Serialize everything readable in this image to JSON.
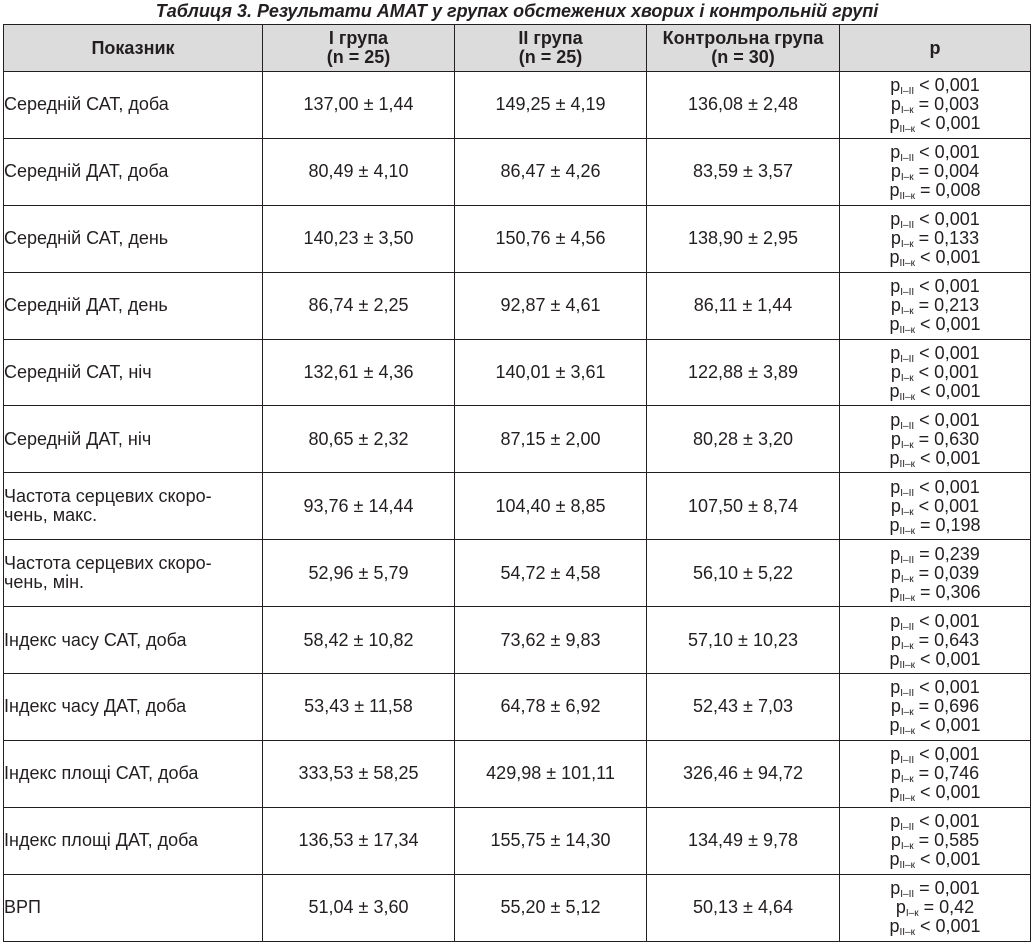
{
  "caption": "Таблиця 3.  Результати АМАТ у групах обстежених хворих і контрольній групі",
  "header": {
    "indicator": "Показник",
    "group1": {
      "name": "І група",
      "n": "(n = 25)"
    },
    "group2": {
      "name": "ІІ група",
      "n": "(n = 25)"
    },
    "control": {
      "name": "Контрольна група",
      "n": "(n = 30)"
    },
    "p": "p"
  },
  "rows": [
    {
      "indicator": "Середній САТ, доба",
      "g1": "137,00 ± 1,44",
      "g2": "149,25 ± 4,19",
      "ctrl": "136,08 ± 2,48",
      "p": [
        {
          "sym": "p",
          "sub": "І–ІІ",
          "val": " < 0,001"
        },
        {
          "sym": "p",
          "sub": "І–к",
          "val": " = 0,003"
        },
        {
          "sym": "p",
          "sub": "ІІ–к",
          "val": " < 0,001"
        }
      ]
    },
    {
      "indicator": "Середній ДАТ, доба",
      "g1": "80,49 ± 4,10",
      "g2": "86,47 ± 4,26",
      "ctrl": "83,59 ± 3,57",
      "p": [
        {
          "sym": "p",
          "sub": "І–ІІ",
          "val": " < 0,001"
        },
        {
          "sym": "p",
          "sub": "І–к",
          "val": " = 0,004"
        },
        {
          "sym": "p",
          "sub": "ІІ–к",
          "val": " = 0,008"
        }
      ]
    },
    {
      "indicator": "Середній САТ, день",
      "g1": "140,23 ± 3,50",
      "g2": "150,76 ± 4,56",
      "ctrl": "138,90 ± 2,95",
      "p": [
        {
          "sym": "p",
          "sub": "І–ІІ",
          "val": " < 0,001"
        },
        {
          "sym": "p",
          "sub": "І–к",
          "val": " = 0,133"
        },
        {
          "sym": "p",
          "sub": "ІІ–к",
          "val": " < 0,001"
        }
      ]
    },
    {
      "indicator": "Середній ДАТ, день",
      "g1": "86,74 ± 2,25",
      "g2": "92,87 ± 4,61",
      "ctrl": "86,11 ± 1,44",
      "p": [
        {
          "sym": "p",
          "sub": "І–ІІ",
          "val": " < 0,001"
        },
        {
          "sym": "p",
          "sub": "І–к",
          "val": " = 0,213"
        },
        {
          "sym": "p",
          "sub": "ІІ–к",
          "val": " < 0,001"
        }
      ]
    },
    {
      "indicator": "Середній САТ, ніч",
      "g1": "132,61 ± 4,36",
      "g2": "140,01 ± 3,61",
      "ctrl": "122,88 ± 3,89",
      "p": [
        {
          "sym": "p",
          "sub": "І–ІІ",
          "val": " < 0,001"
        },
        {
          "sym": "p",
          "sub": "І–к",
          "val": " < 0,001"
        },
        {
          "sym": "p",
          "sub": "ІІ–к",
          "val": " < 0,001"
        }
      ]
    },
    {
      "indicator": "Середній ДАТ, ніч",
      "g1": "80,65 ± 2,32",
      "g2": "87,15 ± 2,00",
      "ctrl": "80,28 ± 3,20",
      "p": [
        {
          "sym": "p",
          "sub": "І–ІІ",
          "val": " < 0,001"
        },
        {
          "sym": "p",
          "sub": "І–к",
          "val": " = 0,630"
        },
        {
          "sym": "p",
          "sub": "ІІ–к",
          "val": " < 0,001"
        }
      ]
    },
    {
      "indicator": "Частота серцевих скоро-\nчень, макс.",
      "g1": "93,76 ± 14,44",
      "g2": "104,40 ± 8,85",
      "ctrl": "107,50 ± 8,74",
      "p": [
        {
          "sym": "p",
          "sub": "І–ІІ",
          "val": " < 0,001"
        },
        {
          "sym": "p",
          "sub": "І–к",
          "val": " < 0,001"
        },
        {
          "sym": "p",
          "sub": "ІІ–к",
          "val": " = 0,198"
        }
      ]
    },
    {
      "indicator": "Частота серцевих скоро-\nчень, мін.",
      "g1": "52,96 ± 5,79",
      "g2": "54,72 ± 4,58",
      "ctrl": "56,10 ± 5,22",
      "p": [
        {
          "sym": "p",
          "sub": "І–ІІ",
          "val": " = 0,239"
        },
        {
          "sym": "p",
          "sub": "І–к",
          "val": " = 0,039"
        },
        {
          "sym": "p",
          "sub": "ІІ–к",
          "val": " = 0,306"
        }
      ]
    },
    {
      "indicator": "Індекс часу САТ, доба",
      "g1": "58,42 ± 10,82",
      "g2": "73,62 ± 9,83",
      "ctrl": "57,10 ± 10,23",
      "p": [
        {
          "sym": "p",
          "sub": "І–ІІ",
          "val": " < 0,001"
        },
        {
          "sym": "p",
          "sub": "І–к",
          "val": " = 0,643"
        },
        {
          "sym": "p",
          "sub": "ІІ–к",
          "val": " < 0,001"
        }
      ]
    },
    {
      "indicator": "Індекс часу ДАТ, доба",
      "g1": "53,43 ± 11,58",
      "g2": "64,78 ± 6,92",
      "ctrl": "52,43 ± 7,03",
      "p": [
        {
          "sym": "p",
          "sub": "І–ІІ",
          "val": " < 0,001"
        },
        {
          "sym": "p",
          "sub": "І–к",
          "val": " = 0,696"
        },
        {
          "sym": "p",
          "sub": "ІІ–к",
          "val": " < 0,001"
        }
      ]
    },
    {
      "indicator": "Індекс площі САТ, доба",
      "g1": "333,53 ± 58,25",
      "g2": "429,98 ± 101,11",
      "ctrl": "326,46 ± 94,72",
      "p": [
        {
          "sym": "p",
          "sub": "І–ІІ",
          "val": " < 0,001"
        },
        {
          "sym": "p",
          "sub": "І–к",
          "val": " = 0,746"
        },
        {
          "sym": "p",
          "sub": "ІІ–к",
          "val": " < 0,001"
        }
      ]
    },
    {
      "indicator": "Індекс площі ДАТ, доба",
      "g1": "136,53 ± 17,34",
      "g2": "155,75 ± 14,30",
      "ctrl": "134,49 ± 9,78",
      "p": [
        {
          "sym": "p",
          "sub": "І–ІІ",
          "val": " < 0,001"
        },
        {
          "sym": "p",
          "sub": "І–к",
          "val": " = 0,585"
        },
        {
          "sym": "p",
          "sub": "ІІ–к",
          "val": " < 0,001"
        }
      ]
    },
    {
      "indicator": "ВРП",
      "g1": "51,04 ± 3,60",
      "g2": "55,20 ± 5,12",
      "ctrl": "50,13 ± 4,64",
      "p": [
        {
          "sym": "p",
          "sub": "І–ІІ",
          "val": " = 0,001"
        },
        {
          "sym": "p",
          "sub": "І–к",
          "val": " = 0,42"
        },
        {
          "sym": "p",
          "sub": "ІІ–к",
          "val": " < 0,001"
        }
      ]
    }
  ]
}
